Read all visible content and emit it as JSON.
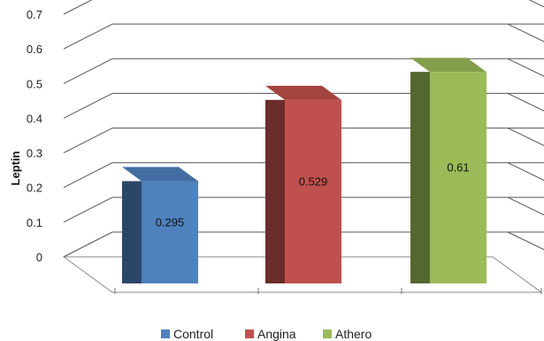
{
  "chart_data": {
    "type": "bar",
    "style": "3d-column",
    "categories": [
      "Control",
      "Angina",
      "Athero"
    ],
    "values": [
      0.295,
      0.529,
      0.61
    ],
    "data_labels": [
      "0.295",
      "0.529",
      "0.61"
    ],
    "ylabel": "Leptin",
    "ylim": [
      0,
      0.7
    ],
    "yticks": [
      "0",
      "0.1",
      "0.2",
      "0.3",
      "0.4",
      "0.5",
      "0.6",
      "0.7"
    ],
    "grid": true,
    "legend_position": "bottom",
    "colors": [
      "#4f81bd",
      "#c0504d",
      "#9bbb59"
    ]
  }
}
